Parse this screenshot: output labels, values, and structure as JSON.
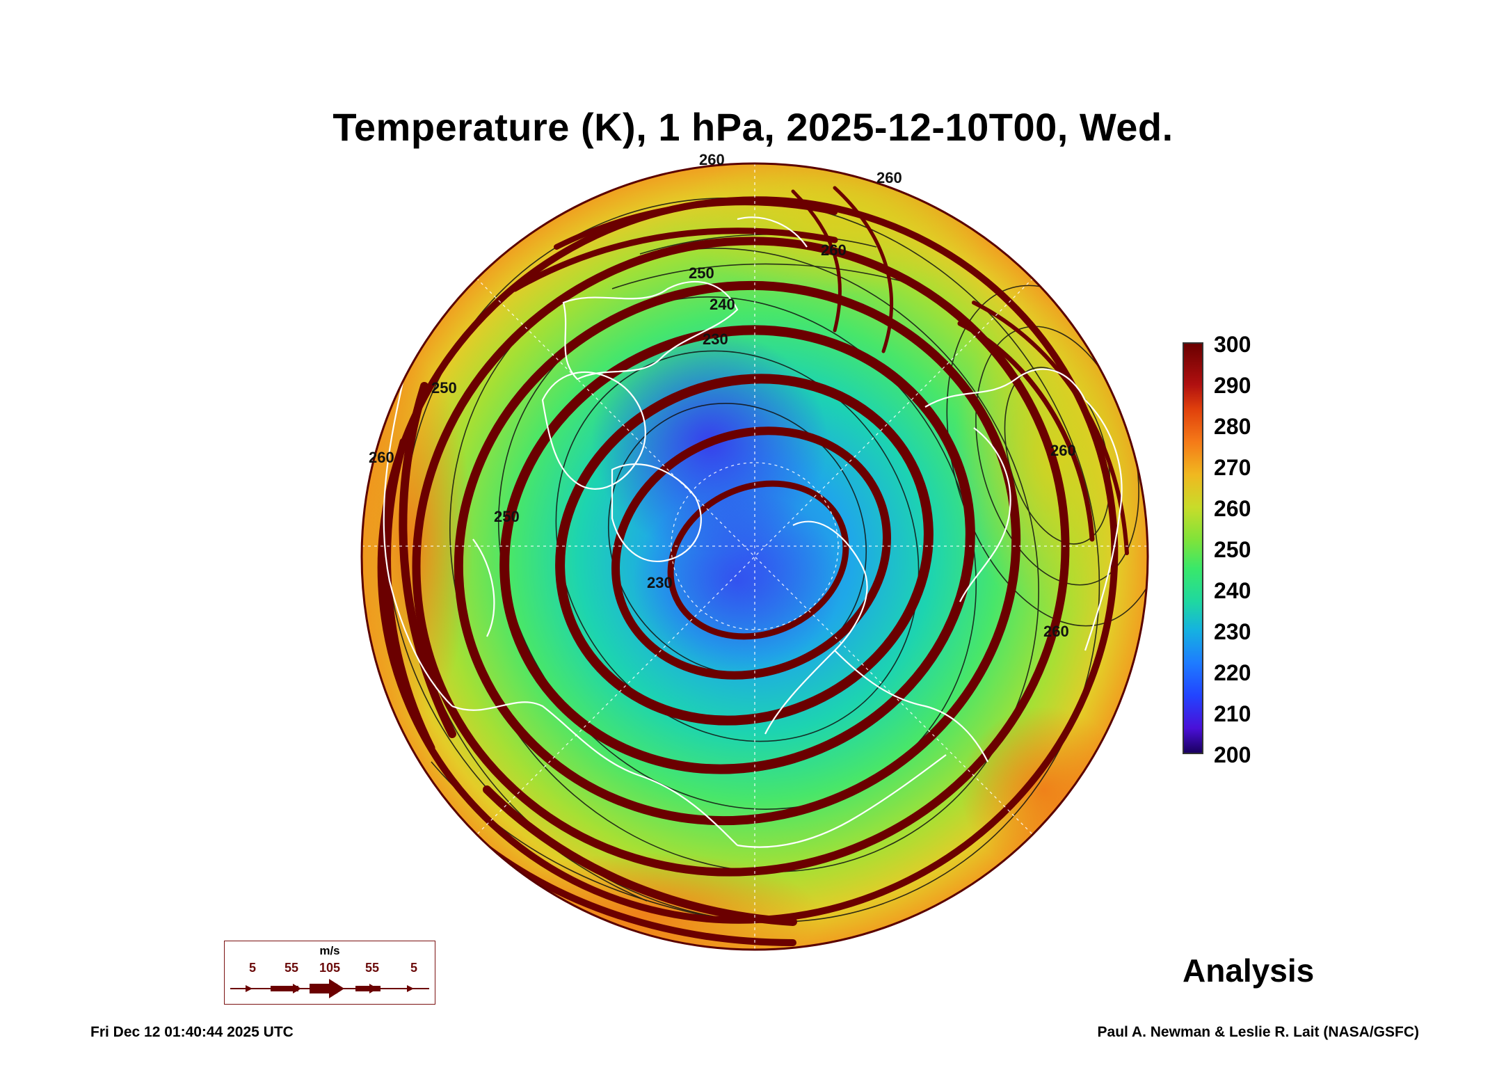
{
  "title": "Temperature (K), 1 hPa, 2025-12-10T00, Wed.",
  "colorbar": {
    "ticks": [
      "300",
      "290",
      "280",
      "270",
      "260",
      "250",
      "240",
      "230",
      "220",
      "210",
      "200"
    ],
    "range": [
      200,
      300
    ],
    "colors": [
      "#1a0060",
      "#4a10d8",
      "#2244ff",
      "#1e7cff",
      "#15b2e0",
      "#1fd8a0",
      "#39e86a",
      "#7fe33a",
      "#c8dc2a",
      "#f0b820",
      "#f57a18",
      "#e0400c",
      "#b01010",
      "#6a0000"
    ]
  },
  "map": {
    "projection": "north-polar orthographic",
    "contour_labels": [
      "260",
      "260",
      "260",
      "250",
      "240",
      "230",
      "250",
      "230",
      "260",
      "260",
      "250",
      "260"
    ],
    "land_outline_color": "#ffffff",
    "streamline_color": "#6b0000"
  },
  "wind_legend": {
    "unit": "m/s",
    "labels": [
      "5",
      "55",
      "105",
      "55",
      "5"
    ]
  },
  "analysis_label": "Analysis",
  "footer": {
    "timestamp": "Fri Dec 12 01:40:44 2025 UTC",
    "credit": "Paul A. Newman & Leslie R. Lait (NASA/GSFC)"
  }
}
